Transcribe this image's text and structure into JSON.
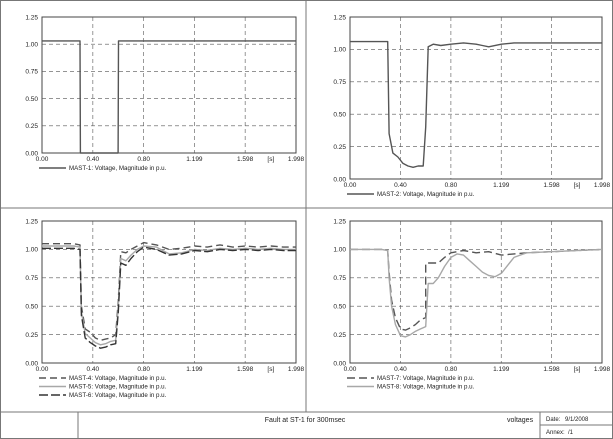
{
  "chart_data": [
    {
      "type": "line",
      "title": "",
      "xlabel": "[s]",
      "ylabel": "",
      "xlim": [
        0.0,
        1.998
      ],
      "ylim": [
        0.0,
        1.25
      ],
      "x_ticks": [
        "0.00",
        "0.40",
        "0.80",
        "1.199",
        "1.598",
        "[s]",
        "1.998"
      ],
      "y_ticks": [
        "0.00",
        "0.25",
        "0.50",
        "0.75",
        "1.00",
        "1.25"
      ],
      "grid": true,
      "series": [
        {
          "name": "MAST-1: Voltage, Magnitude in p.u.",
          "color": "#555555",
          "dash": "",
          "x": [
            0.0,
            0.299,
            0.302,
            0.599,
            0.602,
            1.998
          ],
          "y": [
            1.03,
            1.03,
            0.0,
            0.0,
            1.03,
            1.03
          ]
        }
      ]
    },
    {
      "type": "line",
      "title": "",
      "xlabel": "[s]",
      "ylabel": "",
      "xlim": [
        0.0,
        1.998
      ],
      "ylim": [
        0.0,
        1.25
      ],
      "x_ticks": [
        "0.00",
        "0.40",
        "0.80",
        "1.199",
        "1.598",
        "[s]",
        "1.998"
      ],
      "y_ticks": [
        "0.00",
        "0.25",
        "0.50",
        "0.75",
        "1.00",
        "1.25"
      ],
      "grid": true,
      "series": [
        {
          "name": "MAST-2: Voltage, Magnitude in p.u.",
          "color": "#555555",
          "dash": "",
          "x": [
            0.0,
            0.299,
            0.31,
            0.34,
            0.38,
            0.42,
            0.46,
            0.5,
            0.54,
            0.58,
            0.6,
            0.62,
            0.66,
            0.72,
            0.8,
            0.9,
            1.0,
            1.05,
            1.1,
            1.2,
            1.3,
            1.5,
            1.998
          ],
          "y": [
            1.06,
            1.06,
            0.35,
            0.2,
            0.17,
            0.12,
            0.1,
            0.09,
            0.1,
            0.1,
            0.4,
            1.02,
            1.04,
            1.03,
            1.04,
            1.05,
            1.04,
            1.03,
            1.02,
            1.04,
            1.05,
            1.05,
            1.05
          ]
        }
      ]
    },
    {
      "type": "line",
      "title": "",
      "xlabel": "[s]",
      "ylabel": "",
      "xlim": [
        0.0,
        1.998
      ],
      "ylim": [
        0.0,
        1.25
      ],
      "x_ticks": [
        "0.00",
        "0.40",
        "0.80",
        "1.199",
        "1.598",
        "[s]",
        "1.998"
      ],
      "y_ticks": [
        "0.00",
        "0.25",
        "0.50",
        "0.75",
        "1.00",
        "1.25"
      ],
      "grid": true,
      "series": [
        {
          "name": "MAST-4: Voltage, Magnitude in p.u.",
          "color": "#555555",
          "dash": "7,4",
          "x": [
            0.0,
            0.25,
            0.299,
            0.31,
            0.34,
            0.38,
            0.42,
            0.46,
            0.5,
            0.54,
            0.58,
            0.6,
            0.62,
            0.66,
            0.7,
            0.75,
            0.8,
            0.9,
            1.0,
            1.1,
            1.2,
            1.3,
            1.4,
            1.5,
            1.6,
            1.7,
            1.8,
            1.9,
            1.998
          ],
          "y": [
            1.05,
            1.05,
            1.04,
            0.5,
            0.3,
            0.27,
            0.22,
            0.2,
            0.21,
            0.22,
            0.25,
            0.55,
            0.98,
            0.97,
            1.0,
            1.03,
            1.06,
            1.04,
            1.0,
            1.01,
            1.03,
            1.02,
            1.04,
            1.02,
            1.03,
            1.02,
            1.03,
            1.02,
            1.02
          ]
        },
        {
          "name": "MAST-5: Voltage, Magnitude in p.u.",
          "color": "#a8a8a8",
          "dash": "",
          "x": [
            0.0,
            0.25,
            0.299,
            0.31,
            0.34,
            0.38,
            0.42,
            0.46,
            0.5,
            0.54,
            0.58,
            0.6,
            0.62,
            0.66,
            0.7,
            0.75,
            0.8,
            0.9,
            1.0,
            1.1,
            1.2,
            1.3,
            1.4,
            1.5,
            1.6,
            1.7,
            1.8,
            1.9,
            1.998
          ],
          "y": [
            1.03,
            1.03,
            1.02,
            0.45,
            0.26,
            0.22,
            0.18,
            0.16,
            0.17,
            0.19,
            0.2,
            0.5,
            0.92,
            0.9,
            0.95,
            1.0,
            1.03,
            1.02,
            0.96,
            0.97,
            1.0,
            0.99,
            1.01,
            1.0,
            1.01,
            1.0,
            1.01,
            1.0,
            1.0
          ]
        },
        {
          "name": "MAST-6: Voltage, Magnitude in p.u.",
          "color": "#333333",
          "dash": "9,3",
          "x": [
            0.0,
            0.25,
            0.299,
            0.31,
            0.34,
            0.38,
            0.42,
            0.46,
            0.5,
            0.54,
            0.58,
            0.6,
            0.62,
            0.66,
            0.7,
            0.75,
            0.8,
            0.9,
            1.0,
            1.1,
            1.2,
            1.3,
            1.4,
            1.5,
            1.6,
            1.7,
            1.8,
            1.9,
            1.998
          ],
          "y": [
            1.01,
            1.01,
            1.0,
            0.42,
            0.22,
            0.18,
            0.15,
            0.13,
            0.14,
            0.16,
            0.17,
            0.45,
            0.88,
            0.86,
            0.92,
            0.98,
            1.02,
            1.0,
            0.95,
            0.96,
            0.99,
            0.98,
            1.0,
            0.99,
            1.0,
            0.99,
            1.0,
            0.99,
            0.99
          ]
        }
      ]
    },
    {
      "type": "line",
      "title": "",
      "xlabel": "[s]",
      "ylabel": "",
      "xlim": [
        0.0,
        1.998
      ],
      "ylim": [
        0.0,
        1.25
      ],
      "x_ticks": [
        "0.00",
        "0.40",
        "0.80",
        "1.199",
        "1.598",
        "[s]",
        "1.998"
      ],
      "y_ticks": [
        "0.00",
        "0.25",
        "0.50",
        "0.75",
        "1.00",
        "1.25"
      ],
      "grid": true,
      "series": [
        {
          "name": "MAST-7: Voltage, Magnitude in p.u.",
          "color": "#555555",
          "dash": "8,4",
          "x": [
            0.0,
            0.25,
            0.299,
            0.31,
            0.33,
            0.36,
            0.4,
            0.44,
            0.48,
            0.52,
            0.56,
            0.6,
            0.6,
            0.65,
            0.7,
            0.75,
            0.8,
            0.9,
            1.0,
            1.1,
            1.2,
            1.3,
            1.4,
            1.6,
            1.8,
            1.998
          ],
          "y": [
            1.0,
            1.0,
            0.99,
            0.8,
            0.55,
            0.4,
            0.3,
            0.29,
            0.31,
            0.34,
            0.38,
            0.4,
            0.88,
            0.88,
            0.88,
            0.93,
            0.97,
            0.99,
            0.97,
            0.98,
            0.95,
            0.96,
            0.97,
            0.98,
            0.99,
            1.0
          ]
        },
        {
          "name": "MAST-8: Voltage, Magnitude in p.u.",
          "color": "#a8a8a8",
          "dash": "",
          "x": [
            0.0,
            0.25,
            0.299,
            0.31,
            0.33,
            0.36,
            0.4,
            0.44,
            0.48,
            0.52,
            0.56,
            0.6,
            0.62,
            0.66,
            0.7,
            0.75,
            0.8,
            0.85,
            0.9,
            0.95,
            1.0,
            1.05,
            1.1,
            1.15,
            1.2,
            1.25,
            1.3,
            1.4,
            1.6,
            1.8,
            1.998
          ],
          "y": [
            1.0,
            1.0,
            0.99,
            0.75,
            0.5,
            0.34,
            0.24,
            0.23,
            0.25,
            0.28,
            0.3,
            0.32,
            0.7,
            0.7,
            0.75,
            0.85,
            0.93,
            0.96,
            0.95,
            0.9,
            0.85,
            0.8,
            0.77,
            0.76,
            0.79,
            0.86,
            0.93,
            0.97,
            0.98,
            0.99,
            1.0
          ]
        }
      ]
    }
  ],
  "footer": {
    "title": "Fault at ST-1 for 300msec",
    "tag": "voltages",
    "date_label": "Date:",
    "date_value": "9/1/2008",
    "annex_label": "Annex:",
    "annex_value": "/1"
  }
}
